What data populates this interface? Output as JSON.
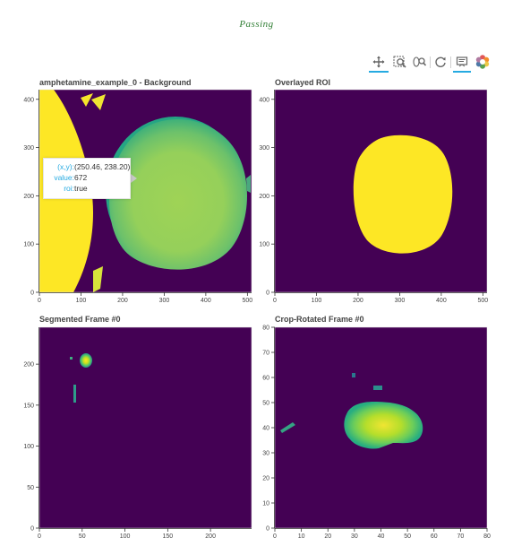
{
  "status_text": "Passing",
  "toolbar": {
    "tools": [
      "pan-icon",
      "box-zoom-icon",
      "wheel-zoom-icon",
      "reset-icon",
      "hover-icon",
      "bokeh-logo"
    ]
  },
  "colors": {
    "viridis_dark": "#440154",
    "viridis_mid": "#21918c",
    "viridis_green": "#9fd356",
    "viridis_yellow": "#fde725",
    "status": "#2e7d32",
    "accent": "#26aae1"
  },
  "tooltip": {
    "xy_key": "(x,y):",
    "xy_value": "(250.46, 238.20)",
    "value_key": "value:",
    "value_value": "672",
    "roi_key": "roi:",
    "roi_value": "true"
  },
  "chart_data": [
    {
      "type": "heatmap",
      "title": "amphetamine_example_0 - Background",
      "xlim": [
        0,
        510
      ],
      "ylim": [
        0,
        420
      ],
      "xticks": [
        "0",
        "100",
        "200",
        "300",
        "400",
        "500"
      ],
      "yticks": [
        "0",
        "100",
        "200",
        "300",
        "400"
      ],
      "colormap": "viridis"
    },
    {
      "type": "heatmap",
      "title": "Overlayed ROI",
      "xlim": [
        0,
        510
      ],
      "ylim": [
        0,
        420
      ],
      "xticks": [
        "0",
        "100",
        "200",
        "300",
        "400",
        "500"
      ],
      "yticks": [
        "0",
        "100",
        "200",
        "300",
        "400"
      ],
      "colormap": "viridis"
    },
    {
      "type": "heatmap",
      "title": "Segmented Frame #0",
      "xlim": [
        0,
        248
      ],
      "ylim": [
        0,
        245
      ],
      "xticks": [
        "0",
        "50",
        "100",
        "150",
        "200"
      ],
      "yticks": [
        "0",
        "50",
        "100",
        "150",
        "200"
      ],
      "colormap": "viridis"
    },
    {
      "type": "heatmap",
      "title": "Crop-Rotated Frame #0",
      "xlim": [
        0,
        80
      ],
      "ylim": [
        0,
        80
      ],
      "xticks": [
        "0",
        "10",
        "20",
        "30",
        "40",
        "50",
        "60",
        "70",
        "80"
      ],
      "yticks": [
        "0",
        "10",
        "20",
        "30",
        "40",
        "50",
        "60",
        "70",
        "80"
      ],
      "colormap": "viridis"
    }
  ]
}
